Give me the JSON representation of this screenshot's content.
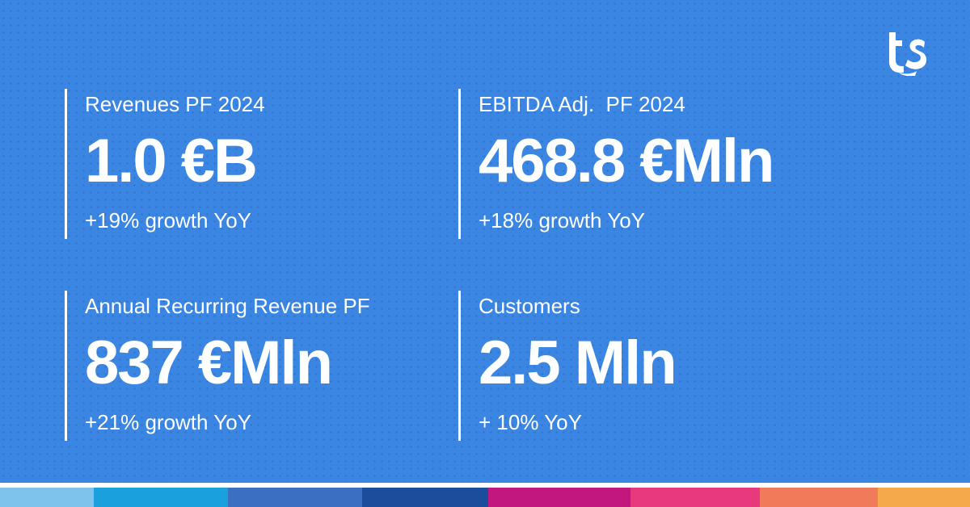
{
  "brand": {
    "logo_icon": "ts-logo-icon",
    "logo_color": "#ffffff"
  },
  "colors": {
    "background": "#3a86e2",
    "text": "#ffffff"
  },
  "kpis": [
    {
      "label": "Revenues PF 2024",
      "value": "1.0 €B",
      "growth": "+19% growth YoY"
    },
    {
      "label": "EBITDA Adj.  PF 2024",
      "value": "468.8 €Mln",
      "growth": "+18% growth YoY"
    },
    {
      "label": "Annual Recurring Revenue PF",
      "value": "837 €Mln",
      "growth": "+21% growth YoY"
    },
    {
      "label": "Customers",
      "value": "2.5 Mln",
      "growth": "+ 10% YoY"
    }
  ],
  "stripe_colors": [
    "#7ec3ec",
    "#1aa0dd",
    "#3b6fbf",
    "#1c4c9c",
    "#c2187e",
    "#e8397d",
    "#f07a5a",
    "#f6a94a"
  ]
}
